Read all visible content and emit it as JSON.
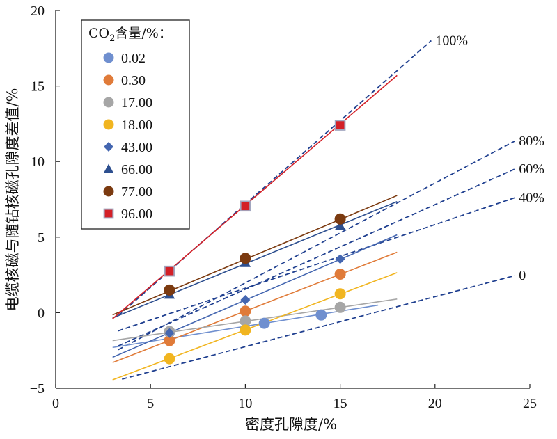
{
  "chart_data": {
    "type": "scatter",
    "xlabel": "密度孔隙度/%",
    "ylabel": "电缆核磁与随钻核磁孔隙度差值/%",
    "xlim": [
      0,
      25
    ],
    "ylim": [
      -5,
      20
    ],
    "xticks": [
      0,
      5,
      10,
      15,
      20,
      25
    ],
    "yticks": [
      -5,
      0,
      5,
      10,
      15,
      20
    ],
    "grid": false,
    "legend_position": "top-left",
    "legend_title": "CO2含量/%：",
    "legend_title_parts": {
      "pre": "CO",
      "sub": "2",
      "post": "含量/%："
    },
    "series": [
      {
        "name": "0.02",
        "marker": "circle",
        "color": "#6f8fcf",
        "points": [
          [
            6,
            -1.3
          ],
          [
            11,
            -0.7
          ],
          [
            14,
            -0.15
          ]
        ],
        "fit": [
          [
            3,
            -2.3
          ],
          [
            17,
            0.5
          ]
        ]
      },
      {
        "name": "0.30",
        "marker": "circle",
        "color": "#e07b39",
        "points": [
          [
            6,
            -1.85
          ],
          [
            10,
            0.1
          ],
          [
            15,
            2.55
          ]
        ],
        "fit": [
          [
            3,
            -3.3
          ],
          [
            18,
            4.0
          ]
        ]
      },
      {
        "name": "17.00",
        "marker": "circle",
        "color": "#a6a6a6",
        "points": [
          [
            6,
            -1.25
          ],
          [
            10,
            -0.55
          ],
          [
            15,
            0.35
          ]
        ],
        "fit": [
          [
            3,
            -1.85
          ],
          [
            18,
            0.9
          ]
        ]
      },
      {
        "name": "18.00",
        "marker": "circle",
        "color": "#f1b520",
        "points": [
          [
            6,
            -3.05
          ],
          [
            10,
            -1.15
          ],
          [
            15,
            1.25
          ]
        ],
        "fit": [
          [
            3,
            -4.45
          ],
          [
            18,
            2.65
          ]
        ]
      },
      {
        "name": "43.00",
        "marker": "diamond",
        "color": "#4466b0",
        "points": [
          [
            6,
            -1.35
          ],
          [
            10,
            0.85
          ],
          [
            15,
            3.55
          ]
        ],
        "fit": [
          [
            3,
            -2.95
          ],
          [
            18,
            5.15
          ]
        ]
      },
      {
        "name": "66.00",
        "marker": "triangle",
        "color": "#2d4f8f",
        "points": [
          [
            6,
            1.2
          ],
          [
            10,
            3.3
          ],
          [
            15,
            5.75
          ]
        ],
        "fit": [
          [
            3,
            -0.35
          ],
          [
            18,
            7.35
          ]
        ]
      },
      {
        "name": "77.00",
        "marker": "circle",
        "color": "#7b3a10",
        "points": [
          [
            6,
            1.5
          ],
          [
            10,
            3.6
          ],
          [
            15,
            6.2
          ]
        ],
        "fit": [
          [
            3,
            -0.15
          ],
          [
            18,
            7.75
          ]
        ]
      },
      {
        "name": "96.00",
        "marker": "square",
        "color": "#d42027",
        "points": [
          [
            6,
            2.75
          ],
          [
            10,
            7.05
          ],
          [
            15,
            12.4
          ]
        ],
        "fit": [
          [
            3,
            -0.4
          ],
          [
            18,
            15.7
          ]
        ]
      }
    ],
    "reference_lines": [
      {
        "label": "100%",
        "from": [
          3.3,
          -0.2
        ],
        "to": [
          19.8,
          18.0
        ]
      },
      {
        "label": "80%",
        "from": [
          3.3,
          -2.45
        ],
        "to": [
          24.2,
          11.35
        ]
      },
      {
        "label": "60%",
        "from": [
          3.3,
          -2.2
        ],
        "to": [
          24.2,
          9.5
        ]
      },
      {
        "label": "40%",
        "from": [
          3.3,
          -1.2
        ],
        "to": [
          24.2,
          7.6
        ]
      },
      {
        "label": "0",
        "from": [
          3.5,
          -4.4
        ],
        "to": [
          24.2,
          2.45
        ]
      }
    ]
  },
  "colors": {
    "reference_line": "#1f3f8f",
    "axis": "#222222"
  }
}
